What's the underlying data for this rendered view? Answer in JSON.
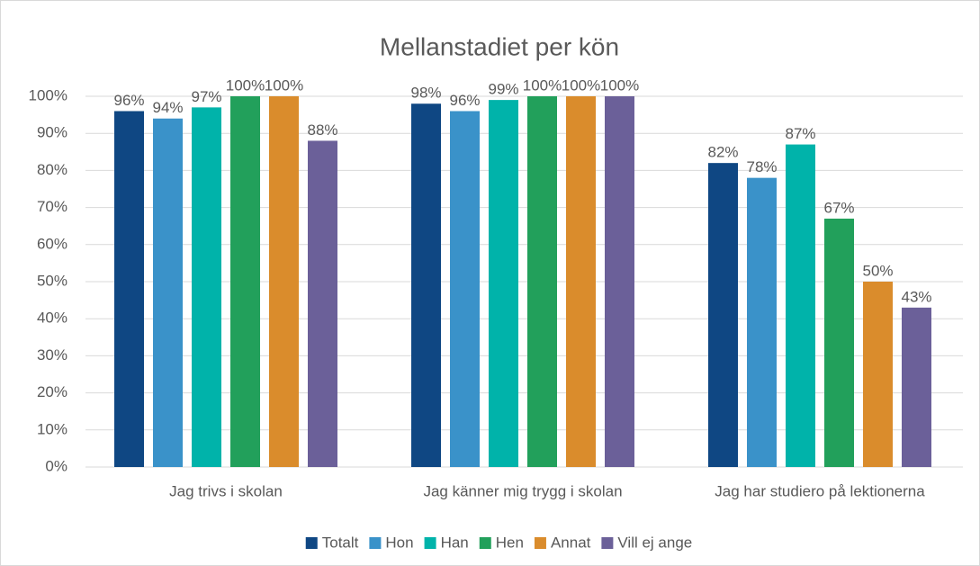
{
  "chart_data": {
    "type": "bar",
    "title": "Mellanstadiet per kön",
    "categories": [
      "Jag trivs i skolan",
      "Jag känner mig trygg i skolan",
      "Jag har studiero på lektionerna"
    ],
    "series": [
      {
        "name": "Totalt",
        "color": "#0f4783",
        "values": [
          96,
          98,
          82
        ],
        "value_labels": [
          "96%",
          "98%",
          "82%"
        ]
      },
      {
        "name": "Hon",
        "color": "#3a92c9",
        "values": [
          94,
          96,
          78
        ],
        "value_labels": [
          "94%",
          "96%",
          "78%"
        ]
      },
      {
        "name": "Han",
        "color": "#00b3aa",
        "values": [
          97,
          99,
          87
        ],
        "value_labels": [
          "97%",
          "99%",
          "87%"
        ]
      },
      {
        "name": "Hen",
        "color": "#22a05b",
        "values": [
          100,
          100,
          67
        ],
        "value_labels": [
          "100%",
          "100%",
          "67%"
        ]
      },
      {
        "name": "Annat",
        "color": "#da8c2c",
        "values": [
          100,
          100,
          50
        ],
        "value_labels": [
          "100%",
          "100%",
          "50%"
        ]
      },
      {
        "name": "Vill ej ange",
        "color": "#6b6099",
        "values": [
          88,
          100,
          43
        ],
        "value_labels": [
          "88%",
          "100%",
          "43%"
        ]
      }
    ],
    "ylim": [
      0,
      100
    ],
    "yticks": [
      {
        "value": 0,
        "label": "0%"
      },
      {
        "value": 10,
        "label": "10%"
      },
      {
        "value": 20,
        "label": "20%"
      },
      {
        "value": 30,
        "label": "30%"
      },
      {
        "value": 40,
        "label": "40%"
      },
      {
        "value": 50,
        "label": "50%"
      },
      {
        "value": 60,
        "label": "60%"
      },
      {
        "value": 70,
        "label": "70%"
      },
      {
        "value": 80,
        "label": "80%"
      },
      {
        "value": 90,
        "label": "90%"
      },
      {
        "value": 100,
        "label": "100%"
      }
    ],
    "grid": true,
    "legend": "bottom"
  }
}
